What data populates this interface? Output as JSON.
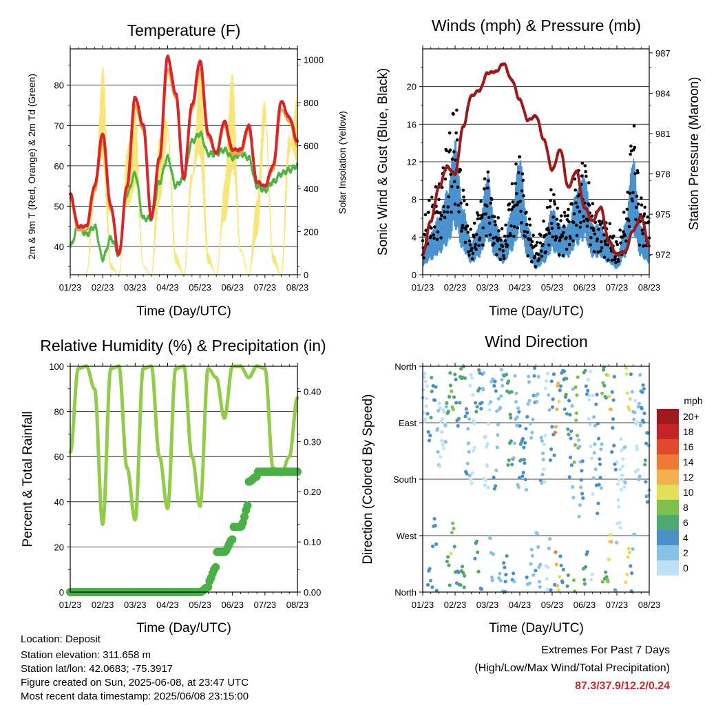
{
  "colors": {
    "temperature_2m": "#d9262c",
    "temperature_9m": "#f4a13a",
    "dewpoint_2m": "#4cb544",
    "solar": "#f7e36a",
    "sonic_wind": "#4a93cf",
    "gust": "#000000",
    "pressure": "#9b1b1b",
    "rh": "#92cc4a",
    "precip": "#48b044",
    "extremes_text": "#c8282d"
  },
  "charts": [
    {
      "id": "temperature",
      "title": "Temperature (F)",
      "xlabel": "Time (Day/UTC)",
      "ylabel": "2m & 9m T (Red, Orange) & 2m Td (Green)",
      "ylabel_right": "Solar Insolation (Yellow)",
      "xticks": [
        "01/23",
        "02/23",
        "03/23",
        "04/23",
        "05/23",
        "06/23",
        "07/23",
        "08/23"
      ],
      "yticks": [
        "40",
        "50",
        "60",
        "70",
        "80"
      ],
      "yticks_right": [
        "0",
        "200",
        "400",
        "600",
        "800",
        "1000"
      ]
    },
    {
      "id": "winds",
      "title": "Winds (mph) & Pressure (mb)",
      "xlabel": "Time (Day/UTC)",
      "ylabel": "Sonic Wind & Gust (Blue, Black)",
      "ylabel_right": "Station Pressure (Maroon)",
      "xticks": [
        "01/23",
        "02/23",
        "03/23",
        "04/23",
        "05/23",
        "06/23",
        "07/23",
        "08/23"
      ],
      "yticks": [
        "0",
        "4",
        "8",
        "12",
        "16",
        "20"
      ],
      "yticks_right": [
        "972",
        "975",
        "978",
        "981",
        "984",
        "987"
      ]
    },
    {
      "id": "humidity",
      "title": "Relative Humidity (%) & Precipitation (in)",
      "xlabel": "Time (Day/UTC)",
      "ylabel": "Percent & Total Rainfall",
      "xticks": [
        "01/23",
        "02/23",
        "03/23",
        "04/23",
        "05/23",
        "06/23",
        "07/23",
        "08/23"
      ],
      "yticks": [
        "0",
        "20",
        "40",
        "60",
        "80",
        "100"
      ],
      "yticks_right": [
        "0.00",
        "0.10",
        "0.20",
        "0.30",
        "0.40"
      ]
    },
    {
      "id": "direction",
      "title": "Wind Direction",
      "xlabel": "Time (Day/UTC)",
      "ylabel": "Direction (Colored By Speed)",
      "xticks": [
        "01/23",
        "02/23",
        "03/23",
        "04/23",
        "05/23",
        "06/23",
        "07/23",
        "08/23"
      ],
      "yticks": [
        "North",
        "East",
        "South",
        "West",
        "North"
      ],
      "colorbar": {
        "title": "mph",
        "labels": [
          "0",
          "2",
          "4",
          "6",
          "8",
          "10",
          "12",
          "14",
          "16",
          "18",
          "20+"
        ],
        "colors": [
          "#bfe3f6",
          "#86c2e8",
          "#4a8fc8",
          "#4ea870",
          "#7cc04e",
          "#e3df5a",
          "#f4b04e",
          "#ef7a37",
          "#e04a2a",
          "#c62326",
          "#9e1a1d"
        ]
      }
    }
  ],
  "chart_data": [
    {
      "type": "line",
      "title": "Temperature (F)",
      "xlabel": "Time (Day/UTC)",
      "ylabel": "2m & 9m T (Red, Orange) & 2m Td (Green)",
      "ylabel_right": "Solar Insolation (Yellow)",
      "x": [
        0,
        0.25,
        0.5,
        0.75,
        1,
        1.25,
        1.5,
        1.75,
        2,
        2.25,
        2.5,
        2.75,
        3,
        3.25,
        3.5,
        3.75,
        4,
        4.25,
        4.5,
        4.75,
        5,
        5.25,
        5.5,
        5.75,
        6,
        6.25,
        6.5,
        6.75,
        7
      ],
      "xticks": [
        "01/23",
        "02/23",
        "03/23",
        "04/23",
        "05/23",
        "06/23",
        "07/23",
        "08/23"
      ],
      "ylim": [
        33,
        89
      ],
      "ylim_right": [
        0,
        1050
      ],
      "series": [
        {
          "values": [
            53,
            45,
            45,
            55,
            68,
            50,
            38,
            55,
            77,
            70,
            47,
            62,
            87,
            78,
            57,
            75,
            86,
            68,
            63,
            71,
            64,
            64,
            70,
            56,
            55,
            60,
            76,
            72,
            66
          ]
        },
        {
          "values": [
            52,
            44,
            44,
            54,
            66,
            49,
            38,
            54,
            75,
            69,
            47,
            61,
            84,
            77,
            57,
            74,
            84,
            67,
            63,
            70,
            63,
            63,
            69,
            56,
            55,
            59,
            74,
            71,
            65
          ]
        },
        {
          "values": [
            40,
            45,
            43,
            45,
            37,
            42,
            38,
            53,
            58,
            47,
            47,
            56,
            62,
            55,
            57,
            66,
            68,
            63,
            63,
            64,
            62,
            63,
            62,
            55,
            54,
            56,
            58,
            59,
            60
          ]
        },
        {
          "axis": "right",
          "values": [
            0,
            0,
            0,
            500,
            1000,
            50,
            0,
            600,
            800,
            50,
            0,
            650,
            900,
            100,
            0,
            600,
            1000,
            100,
            0,
            450,
            950,
            150,
            0,
            350,
            1000,
            100,
            0,
            800,
            900
          ]
        }
      ]
    },
    {
      "type": "line",
      "title": "Winds (mph) & Pressure (mb)",
      "xlabel": "Time (Day/UTC)",
      "ylabel": "Sonic Wind & Gust (Blue, Black)",
      "ylabel_right": "Station Pressure (Maroon)",
      "x": [
        0,
        0.25,
        0.5,
        0.75,
        1,
        1.25,
        1.5,
        1.75,
        2,
        2.25,
        2.5,
        2.75,
        3,
        3.25,
        3.5,
        3.75,
        4,
        4.25,
        4.5,
        4.75,
        5,
        5.25,
        5.5,
        5.75,
        6,
        6.25,
        6.5,
        6.75,
        7
      ],
      "xticks": [
        "01/23",
        "02/23",
        "03/23",
        "04/23",
        "05/23",
        "06/23",
        "07/23",
        "08/23"
      ],
      "ylim": [
        0,
        24
      ],
      "ylim_right": [
        970.5,
        987.3
      ],
      "series": [
        {
          "values": [
            1.5,
            2.5,
            3.5,
            5,
            8,
            4,
            2,
            3,
            6,
            3,
            2,
            4,
            7,
            3,
            1,
            2,
            4,
            3,
            3,
            5,
            6,
            3,
            3,
            2,
            1,
            3,
            7,
            3,
            2
          ]
        },
        {
          "values": [
            5,
            8,
            9,
            14,
            18,
            9,
            4,
            7,
            11,
            6,
            4,
            9,
            13,
            6,
            3,
            5,
            9,
            6,
            7,
            10,
            12,
            7,
            6,
            5,
            3,
            6,
            16,
            8,
            6
          ]
        },
        {
          "axis": "right",
          "values": [
            972.0,
            974.5,
            977.0,
            978.5,
            978.0,
            981.5,
            983.8,
            984.2,
            985.5,
            985.6,
            986.2,
            985.0,
            983.5,
            982.0,
            982.3,
            980.5,
            978.3,
            979.8,
            977.0,
            978.2,
            975.5,
            974.5,
            975.5,
            973.0,
            972.0,
            972.2,
            973.8,
            974.8,
            972.6
          ]
        }
      ]
    },
    {
      "type": "line",
      "title": "Relative Humidity (%) & Precipitation (in)",
      "xlabel": "Time (Day/UTC)",
      "ylabel": "Percent & Total Rainfall",
      "x": [
        0,
        0.25,
        0.5,
        0.75,
        1,
        1.25,
        1.5,
        1.75,
        2,
        2.25,
        2.5,
        2.75,
        3,
        3.25,
        3.5,
        3.75,
        4,
        4.25,
        4.5,
        4.75,
        5,
        5.25,
        5.5,
        5.75,
        6,
        6.25,
        6.5,
        6.75,
        7
      ],
      "xticks": [
        "01/23",
        "02/23",
        "03/23",
        "04/23",
        "05/23",
        "06/23",
        "07/23",
        "08/23"
      ],
      "ylim": [
        0,
        100
      ],
      "ylim_right": [
        0,
        0.45
      ],
      "series": [
        {
          "values": [
            62,
            99,
            100,
            90,
            30,
            99,
            100,
            55,
            32,
            99,
            100,
            60,
            37,
            99,
            100,
            60,
            38,
            99,
            95,
            77,
            100,
            100,
            95,
            100,
            99,
            55,
            52,
            60,
            86
          ]
        },
        {
          "axis": "right",
          "values": [
            0,
            0,
            0,
            0,
            0,
            0,
            0,
            0,
            0,
            0,
            0,
            0,
            0,
            0,
            0,
            0,
            0,
            0.02,
            0.08,
            0.08,
            0.13,
            0.13,
            0.22,
            0.24,
            0.24,
            0.24,
            0.24,
            0.24,
            0.24
          ]
        }
      ]
    },
    {
      "type": "scatter",
      "title": "Wind Direction",
      "xlabel": "Time (Day/UTC)",
      "ylabel": "Direction (Colored By Speed)",
      "x": [
        0,
        0.05,
        0.1,
        0.3,
        0.4,
        0.6,
        0.8,
        0.9,
        1.0,
        1.2,
        1.3,
        1.5,
        1.6,
        1.8,
        1.9,
        2.0,
        2.2,
        2.3,
        2.5,
        2.6,
        2.7,
        2.9,
        3.0,
        3.2,
        3.4,
        3.6,
        3.8,
        3.9,
        4.0,
        4.2,
        4.3,
        4.4,
        4.6,
        4.7,
        4.9,
        5.0,
        5.2,
        5.4,
        5.6,
        5.7,
        5.8,
        6.0,
        6.2,
        6.4,
        6.5,
        6.6,
        6.8,
        6.9,
        7.0
      ],
      "directions": [
        310,
        320,
        30,
        250,
        260,
        350,
        20,
        330,
        10,
        240,
        260,
        5,
        330,
        210,
        10,
        250,
        340,
        15,
        270,
        300,
        230,
        215,
        330,
        340,
        20,
        210,
        5,
        290,
        340,
        10,
        320,
        240,
        290,
        180,
        10,
        300,
        240,
        200,
        350,
        10,
        280,
        150,
        200,
        360,
        5,
        240,
        300,
        200,
        180
      ],
      "speeds": [
        1,
        5,
        3,
        2,
        1,
        4,
        8,
        6,
        5,
        3,
        1,
        4,
        3,
        2,
        1,
        2,
        3,
        4,
        5,
        4,
        4,
        2,
        3,
        4,
        1,
        2,
        2,
        3,
        12,
        5,
        4,
        3,
        9,
        2,
        4,
        1,
        2,
        2,
        8,
        10,
        2,
        1,
        1,
        9,
        3,
        2,
        2,
        4,
        3
      ],
      "ylim": [
        0,
        360
      ],
      "yticks": [
        "North",
        "East",
        "South",
        "West",
        "North"
      ],
      "xticks": [
        "01/23",
        "02/23",
        "03/23",
        "04/23",
        "05/23",
        "06/23",
        "07/23",
        "08/23"
      ]
    }
  ],
  "footer": {
    "location": "Location: Deposit",
    "elevation": "Station elevation: 311.658 m",
    "latlon": "Station lat/lon: 42.0683; -75.3917",
    "created": "Figure created on Sun, 2025-06-08, at 23:47 UTC",
    "timestamp": "Most recent data timestamp: 2025/06/08 23:15:00"
  },
  "extremes": {
    "title": "Extremes For Past 7 Days",
    "subtitle": "(High/Low/Max Wind/Total Precipitation)",
    "values": "87.3/37.9/12.2/0.24"
  }
}
